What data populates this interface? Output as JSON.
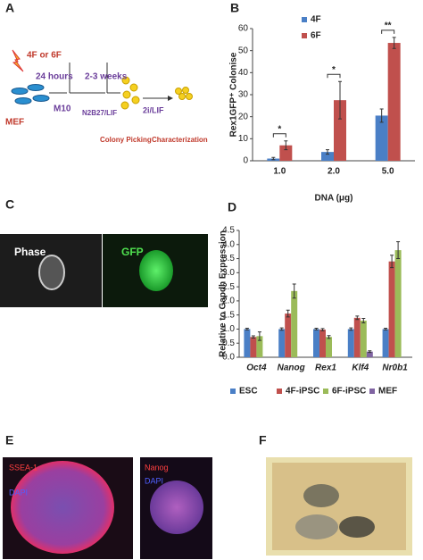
{
  "panel_letters": [
    "A",
    "B",
    "C",
    "D",
    "E",
    "F"
  ],
  "diagram": {
    "treatment": "4F or 6F",
    "cells": "MEF",
    "time1": "24 hours",
    "time2": "2-3 weeks",
    "medium1": "M10",
    "medium2": "N2B27/LIF",
    "medium3": "2i/LIF",
    "step1": "Colony Picking",
    "step2": "Characterization"
  },
  "images": {
    "phase": "Phase",
    "gfp": "GFP",
    "stain1": [
      "SSEA-1",
      "DAPI"
    ],
    "stain2": [
      "Nanog",
      "DAPI"
    ]
  },
  "chart_data": [
    {
      "type": "bar",
      "y_label": "Rex1GFP⁺ Colonise",
      "x_label": "DNA (μg)",
      "categories": [
        "1.0",
        "2.0",
        "5.0"
      ],
      "series": [
        {
          "name": "4F",
          "color": "#4a7fc6",
          "values": [
            1,
            4,
            20.5
          ],
          "errors": [
            0.5,
            1,
            3
          ]
        },
        {
          "name": "6F",
          "color": "#c0504d",
          "values": [
            7,
            27.5,
            53.5
          ],
          "errors": [
            2,
            8.5,
            2.5
          ]
        }
      ],
      "significance": [
        "*",
        "*",
        "**"
      ],
      "ylim": [
        0,
        60
      ],
      "yticks": [
        0,
        10,
        20,
        30,
        40,
        50,
        60
      ],
      "legend": "upper left",
      "grid": false,
      "italic_categories": false
    },
    {
      "type": "bar",
      "y_label": "Relative to Gapdh Expression",
      "categories": [
        "Oct4",
        "Nanog",
        "Rex1",
        "Klf4",
        "Nr0b1"
      ],
      "series": [
        {
          "name": "ESC",
          "color": "#4a7fc6",
          "values": [
            1,
            1,
            1,
            1,
            1
          ],
          "errors": [
            0.03,
            0.04,
            0.03,
            0.04,
            0.03
          ]
        },
        {
          "name": "4F-iPSC",
          "color": "#c0504d",
          "values": [
            0.72,
            1.55,
            0.98,
            1.4,
            3.4
          ],
          "errors": [
            0.04,
            0.12,
            0.04,
            0.06,
            0.22
          ]
        },
        {
          "name": "6F-iPSC",
          "color": "#9bbb59",
          "values": [
            0.75,
            2.35,
            0.72,
            1.3,
            3.8
          ],
          "errors": [
            0.15,
            0.25,
            0.05,
            0.08,
            0.3
          ]
        },
        {
          "name": "MEF",
          "color": "#8064a2",
          "values": [
            0,
            0,
            0,
            0.2,
            0
          ],
          "errors": [
            0,
            0,
            0,
            0.03,
            0
          ]
        }
      ],
      "ylim": [
        0,
        4.5
      ],
      "yticks": [
        {
          "value": 0,
          "label": "0.0"
        },
        {
          "value": 0.5,
          "label": "0.5"
        },
        {
          "value": 1,
          "label": "1.0"
        },
        {
          "value": 1.5,
          "label": "1.5"
        },
        {
          "value": 2,
          "label": "2.0"
        },
        {
          "value": 2.5,
          "label": "2.5"
        },
        {
          "value": 3,
          "label": "3.0"
        },
        {
          "value": 3.5,
          "label": "3.5"
        },
        {
          "value": 4,
          "label": "4.0"
        },
        {
          "value": 4.5,
          "label": "4.5"
        }
      ],
      "legend": "bottom",
      "grid": false,
      "italic_categories": true
    }
  ]
}
